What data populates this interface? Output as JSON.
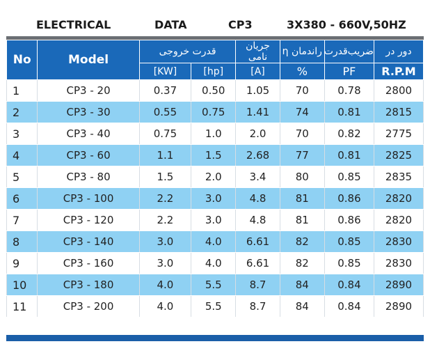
{
  "title": {
    "electrical": "ELECTRICAL",
    "data": "DATA",
    "model": "CP3",
    "spec": "3X380 - 660V,50HZ"
  },
  "headers": {
    "no": "No",
    "model": "Model",
    "power_fa": "قدرت خروجی",
    "kw": "[KW]",
    "hp": "[hp]",
    "current_fa": "جریان نامی",
    "current_unit": "[A]",
    "eff_fa": "راندمان η",
    "eff_unit": "%",
    "pf_fa": "ضریب‌قدرت",
    "pf_unit": "PF",
    "rpm_fa": "دور در",
    "rpm_unit": "R.P.M"
  },
  "rows": [
    {
      "no": "1",
      "model": "CP3 - 20",
      "kw": "0.37",
      "hp": "0.50",
      "a": "1.05",
      "eff": "70",
      "pf": "0.78",
      "rpm": "2800"
    },
    {
      "no": "2",
      "model": "CP3 - 30",
      "kw": "0.55",
      "hp": "0.75",
      "a": "1.41",
      "eff": "74",
      "pf": "0.81",
      "rpm": "2815"
    },
    {
      "no": "3",
      "model": "CP3 - 40",
      "kw": "0.75",
      "hp": "1.0",
      "a": "2.0",
      "eff": "70",
      "pf": "0.82",
      "rpm": "2775"
    },
    {
      "no": "4",
      "model": "CP3 - 60",
      "kw": "1.1",
      "hp": "1.5",
      "a": "2.68",
      "eff": "77",
      "pf": "0.81",
      "rpm": "2825"
    },
    {
      "no": "5",
      "model": "CP3 - 80",
      "kw": "1.5",
      "hp": "2.0",
      "a": "3.4",
      "eff": "80",
      "pf": "0.85",
      "rpm": "2835"
    },
    {
      "no": "6",
      "model": "CP3 - 100",
      "kw": "2.2",
      "hp": "3.0",
      "a": "4.8",
      "eff": "81",
      "pf": "0.86",
      "rpm": "2820"
    },
    {
      "no": "7",
      "model": "CP3 - 120",
      "kw": "2.2",
      "hp": "3.0",
      "a": "4.8",
      "eff": "81",
      "pf": "0.86",
      "rpm": "2820"
    },
    {
      "no": "8",
      "model": "CP3 - 140",
      "kw": "3.0",
      "hp": "4.0",
      "a": "6.61",
      "eff": "82",
      "pf": "0.85",
      "rpm": "2830"
    },
    {
      "no": "9",
      "model": "CP3 - 160",
      "kw": "3.0",
      "hp": "4.0",
      "a": "6.61",
      "eff": "82",
      "pf": "0.85",
      "rpm": "2830"
    },
    {
      "no": "10",
      "model": "CP3 - 180",
      "kw": "4.0",
      "hp": "5.5",
      "a": "8.7",
      "eff": "84",
      "pf": "0.84",
      "rpm": "2890"
    },
    {
      "no": "11",
      "model": "CP3 - 200",
      "kw": "4.0",
      "hp": "5.5",
      "a": "8.7",
      "eff": "84",
      "pf": "0.84",
      "rpm": "2890"
    }
  ],
  "colors": {
    "header_bg": "#1a69b9",
    "alt_row": "#8fd1f3",
    "top_bar": "#6b6f74",
    "bottom_bar": "#1a5ea8"
  }
}
